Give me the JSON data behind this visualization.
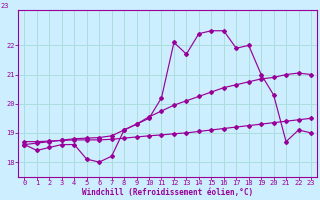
{
  "xlabel": "Windchill (Refroidissement éolien,°C)",
  "bg_color": "#cceeff",
  "grid_color": "#aadddd",
  "line_color": "#990099",
  "xlim": [
    0,
    23
  ],
  "ylim": [
    17.5,
    23.2
  ],
  "yticks": [
    18,
    19,
    20,
    21,
    22
  ],
  "xticks": [
    0,
    1,
    2,
    3,
    4,
    5,
    6,
    7,
    8,
    9,
    10,
    11,
    12,
    13,
    14,
    15,
    16,
    17,
    18,
    19,
    20,
    21,
    22,
    23
  ],
  "series_main": [
    18.6,
    18.4,
    18.5,
    18.6,
    18.6,
    18.1,
    18.0,
    18.2,
    19.1,
    19.3,
    19.5,
    20.2,
    22.1,
    21.7,
    22.4,
    22.5,
    22.5,
    21.9,
    22.0,
    21.0,
    20.3,
    18.7,
    19.1,
    19.0
  ],
  "series_flat": [
    18.7,
    18.7,
    18.72,
    18.74,
    18.76,
    18.76,
    18.76,
    18.78,
    18.82,
    18.86,
    18.9,
    18.93,
    18.97,
    19.0,
    19.05,
    19.1,
    19.15,
    19.2,
    19.25,
    19.3,
    19.35,
    19.4,
    19.45,
    19.5
  ],
  "series_rising": [
    18.6,
    18.65,
    18.7,
    18.75,
    18.8,
    18.82,
    18.84,
    18.9,
    19.1,
    19.3,
    19.55,
    19.75,
    19.95,
    20.1,
    20.25,
    20.4,
    20.55,
    20.65,
    20.75,
    20.85,
    20.9,
    21.0,
    21.05,
    21.0
  ]
}
